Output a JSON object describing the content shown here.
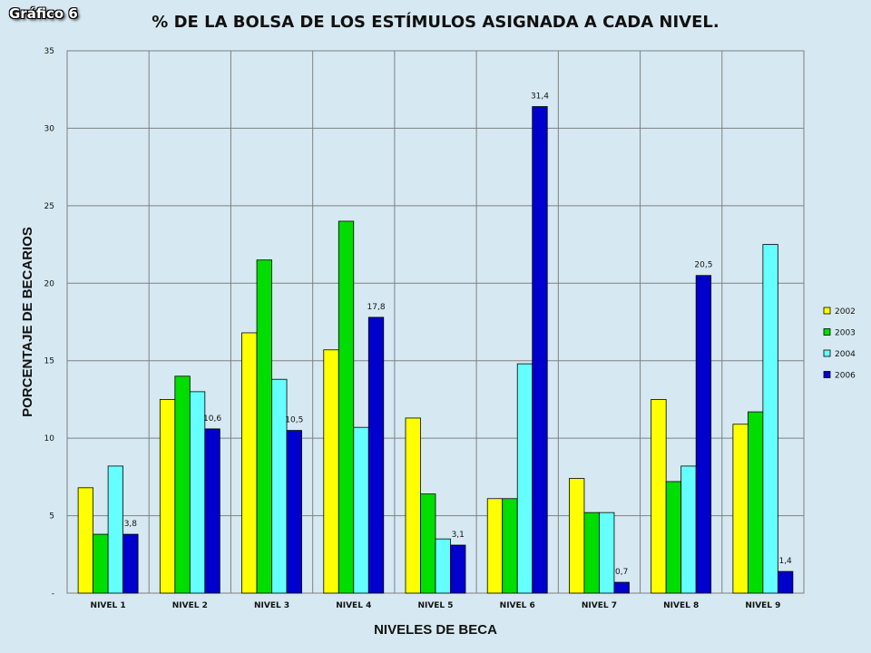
{
  "badge": "Gráfico 6",
  "chart_data": {
    "type": "bar",
    "title": "% DE LA BOLSA DE LOS ESTÍMULOS ASIGNADA A CADA NIVEL.",
    "xlabel": "NIVELES DE BECA",
    "ylabel": "PORCENTAJE DE BECARIOS",
    "ylim": [
      0,
      35
    ],
    "yticks": [
      0,
      5,
      10,
      15,
      20,
      25,
      30,
      35
    ],
    "ytick_labels": [
      "-",
      "5",
      "10",
      "15",
      "20",
      "25",
      "30",
      "35"
    ],
    "grid": true,
    "legend_position": "right",
    "categories": [
      "NIVEL 1",
      "NIVEL 2",
      "NIVEL 3",
      "NIVEL 4",
      "NIVEL 5",
      "NIVEL 6",
      "NIVEL 7",
      "NIVEL 8",
      "NIVEL 9"
    ],
    "series": [
      {
        "name": "2002",
        "color": "#ffff00",
        "values": [
          6.8,
          12.5,
          16.8,
          15.7,
          11.3,
          6.1,
          7.4,
          12.5,
          10.9
        ],
        "labels": [
          "",
          "",
          "",
          "",
          "",
          "",
          "",
          "",
          ""
        ]
      },
      {
        "name": "2003",
        "color": "#00dd00",
        "values": [
          3.8,
          14.0,
          21.5,
          24.0,
          6.4,
          6.1,
          5.2,
          7.2,
          11.7
        ],
        "labels": [
          "",
          "",
          "",
          "",
          "",
          "",
          "",
          "",
          ""
        ]
      },
      {
        "name": "2004",
        "color": "#66ffff",
        "values": [
          8.2,
          13.0,
          13.8,
          10.7,
          3.5,
          14.8,
          5.2,
          8.2,
          22.5
        ],
        "labels": [
          "",
          "",
          "",
          "",
          "",
          "",
          "",
          "",
          ""
        ]
      },
      {
        "name": "2006",
        "color": "#0000cc",
        "values": [
          3.8,
          10.6,
          10.5,
          17.8,
          3.1,
          31.4,
          0.7,
          20.5,
          1.4
        ],
        "labels": [
          "3,8",
          "10,6",
          "10,5",
          "17,8",
          "3,1",
          "31,4",
          "0,7",
          "20,5",
          "1,4"
        ]
      }
    ]
  }
}
